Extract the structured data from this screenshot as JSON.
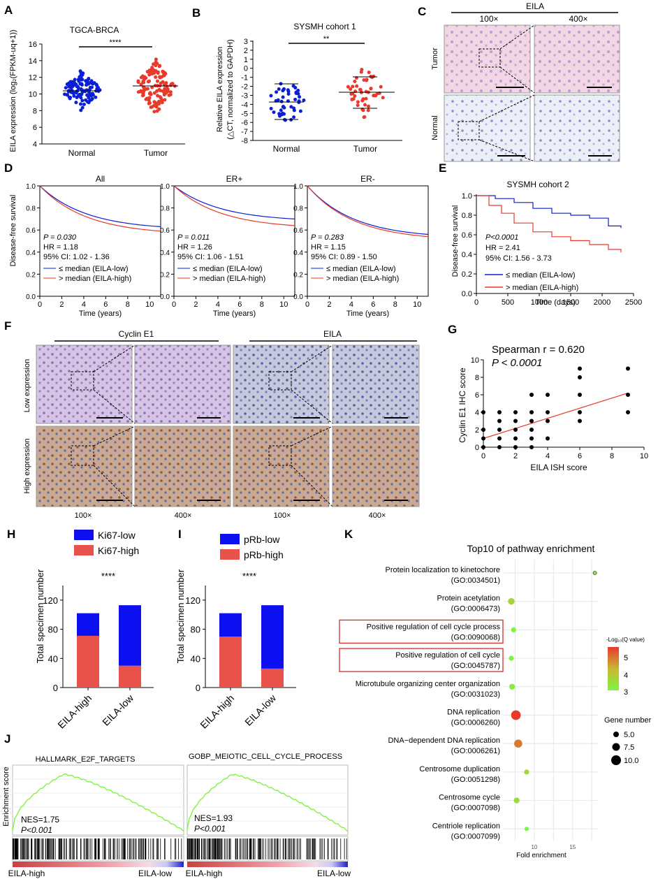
{
  "panels": {
    "A": {
      "letter": "A",
      "title": "TGCA-BRCA",
      "ylabel": "EILA expression (log₂(FPKM-uq+1))",
      "sig": "****",
      "yticks": [
        "4",
        "6",
        "8",
        "10",
        "12",
        "14",
        "16"
      ],
      "xcats": [
        "Normal",
        "Tumor"
      ]
    },
    "B": {
      "letter": "B",
      "title": "SYSMH cohort 1",
      "ylabel1": "Relative EILA expression",
      "ylabel2": "(△CT, normalized to GAPDH)",
      "sig": "**",
      "yticks": [
        "3",
        "2",
        "1",
        "0",
        "-1",
        "-2",
        "-3",
        "-4",
        "-5",
        "-6",
        "-7",
        "-8"
      ],
      "xcats": [
        "Normal",
        "Tumor"
      ]
    },
    "C": {
      "letter": "C",
      "title": "EILA",
      "mag1": "100×",
      "mag2": "400×",
      "rows": [
        "Tumor",
        "Normal"
      ]
    },
    "D": {
      "letter": "D",
      "xlabel": "Time (years)",
      "ylabel": "Disease-free survival",
      "yticks": [
        "0.0",
        "0.2",
        "0.4",
        "0.6",
        "0.8",
        "1.0"
      ],
      "xticks": [
        "0",
        "2",
        "4",
        "6",
        "8",
        "10"
      ],
      "subs": [
        {
          "title": "All",
          "p": "P = 0.030",
          "hr": "HR = 1.18",
          "ci": "95% CI: 1.02 - 1.36"
        },
        {
          "title": "ER+",
          "p": "P = 0.011",
          "hr": "HR = 1.26",
          "ci": "95% CI: 1.06 - 1.51"
        },
        {
          "title": "ER-",
          "p": "P = 0.283",
          "hr": "HR = 1.15",
          "ci": "95% CI: 0.89 - 1.50"
        }
      ],
      "legend_low": "≤ median (EILA-low)",
      "legend_high": "> median (EILA-high)"
    },
    "E": {
      "letter": "E",
      "title": "SYSMH cohort 2",
      "p": "P<0.0001",
      "hr": "HR = 2.41",
      "ci": "95% CI: 1.56 - 3.73",
      "ylabel": "Disease-free survival",
      "xlabel": "Time (days)",
      "yticks": [
        "0.0",
        "0.2",
        "0.4",
        "0.6",
        "0.8",
        "1.0"
      ],
      "xticks": [
        "0",
        "500",
        "1000",
        "1500",
        "2000",
        "2500"
      ],
      "legend_low": "≤ median (EILA-low)",
      "legend_high": "> median (EILA-high)"
    },
    "F": {
      "letter": "F",
      "col1": "Cyclin E1",
      "col2": "EILA",
      "rows": [
        "Low expression",
        "High expression"
      ],
      "mags": [
        "100×",
        "400×",
        "100×",
        "400×"
      ]
    },
    "G": {
      "letter": "G",
      "stat1": "Spearman r = 0.620",
      "stat2": "P < 0.0001",
      "ylabel": "Cyclin E1 IHC score",
      "xlabel": "EILA ISH score",
      "yticks": [
        "0",
        "2",
        "4",
        "6",
        "8",
        "10"
      ],
      "xticks": [
        "0",
        "2",
        "4",
        "6",
        "8",
        "10"
      ]
    },
    "H": {
      "letter": "H",
      "leg1": "Ki67-low",
      "leg2": "Ki67-high",
      "sig": "****",
      "ylabel": "Total specimen number",
      "yticks": [
        "0",
        "40",
        "80",
        "120"
      ],
      "xcats": [
        "EILA-high",
        "EILA-low"
      ]
    },
    "I": {
      "letter": "I",
      "leg1": "pRb-low",
      "leg2": "pRb-high",
      "sig": "****",
      "ylabel": "Total specimen number",
      "yticks": [
        "0",
        "40",
        "80",
        "120"
      ],
      "xcats": [
        "EILA-high",
        "EILA-low"
      ]
    },
    "J": {
      "letter": "J",
      "title1": "HALLMARK_E2F_TARGETS",
      "title2": "GOBP_MEIOTIC_CELL_CYCLE_PROCESS",
      "nes1": "NES=1.75",
      "p1": "P<0.001",
      "nes2": "NES=1.93",
      "p2": "P<0.001",
      "ylabel": "Enrichment score",
      "left": "EILA-high",
      "right": "EILA-low"
    },
    "K": {
      "letter": "K",
      "title": "Top10 of pathway enrichment",
      "xlabel": "Fold enrichment",
      "xticks": [
        "10",
        "15"
      ],
      "legend_q": "-Log₁₀(Q value)",
      "q_ticks": [
        "5",
        "4",
        "3"
      ],
      "legend_gene": "Gene number",
      "gene_ticks": [
        "5.0",
        "7.5",
        "10.0"
      ]
    }
  },
  "chart_data": [
    {
      "type": "scatter",
      "panel": "G",
      "xlabel": "EILA ISH score",
      "ylabel": "Cyclin E1 IHC score",
      "xlim": [
        0,
        10
      ],
      "ylim": [
        0,
        10
      ],
      "x": [
        0,
        0,
        0,
        0,
        1,
        1,
        1,
        1,
        1,
        2,
        2,
        2,
        2,
        2,
        3,
        3,
        3,
        3,
        3,
        3,
        4,
        4,
        4,
        4,
        6,
        6,
        6,
        6,
        6,
        9,
        9,
        9
      ],
      "y": [
        0,
        1,
        2,
        4,
        0,
        1,
        2,
        3,
        4,
        0,
        1,
        2,
        3,
        4,
        0,
        1,
        2,
        3,
        4,
        6,
        1,
        3,
        4,
        6,
        3,
        4,
        6,
        8,
        9,
        4,
        6,
        9
      ],
      "fit": {
        "x0": 0,
        "y0": 1,
        "x1": 9,
        "y1": 6.2
      }
    },
    {
      "type": "bar",
      "panel": "H",
      "categories": [
        "EILA-high",
        "EILA-low"
      ],
      "ylim": [
        0,
        140
      ],
      "series": [
        {
          "name": "Ki67-high",
          "values": [
            71,
            30
          ]
        },
        {
          "name": "Ki67-low",
          "values": [
            31,
            83
          ]
        }
      ]
    },
    {
      "type": "bar",
      "panel": "I",
      "categories": [
        "EILA-high",
        "EILA-low"
      ],
      "ylim": [
        0,
        140
      ],
      "series": [
        {
          "name": "pRb-high",
          "values": [
            70,
            26
          ]
        },
        {
          "name": "pRb-low",
          "values": [
            32,
            87
          ]
        }
      ]
    },
    {
      "type": "scatter",
      "panel": "K",
      "title": "Top10 of pathway enrichment",
      "xlabel": "Fold enrichment",
      "categories": [
        "Protein localization to kinetochore",
        "Protein acetylation",
        "Positive regulation of cell cycle process",
        "Positive regulation of cell cycle",
        "Microtubule organizing center organization",
        "DNA replication",
        "DNA−dependent DNA replication",
        "Centrosome duplication",
        "Centrosome cycle",
        "Centriole replication"
      ],
      "go_ids": [
        "(GO:0034501)",
        "(GO:0006473)",
        "(GO:0090068)",
        "(GO:0045787)",
        "(GO:0031023)",
        "(GO:0006260)",
        "(GO:0006261)",
        "(GO:0051298)",
        "(GO:0007098)",
        "(GO:0007099)"
      ],
      "fold": [
        17.9,
        7.0,
        7.3,
        7.0,
        7.1,
        7.6,
        7.9,
        9.0,
        7.7,
        9.0
      ],
      "qvalue": [
        3.0,
        3.6,
        2.8,
        2.8,
        3.0,
        5.6,
        4.9,
        3.4,
        3.4,
        2.8
      ],
      "genes": [
        3,
        7,
        5,
        5,
        6,
        11,
        9,
        5,
        6,
        4
      ],
      "highlighted": [
        2,
        3
      ]
    },
    {
      "type": "line",
      "panel": "E",
      "title": "SYSMH cohort 2",
      "xlabel": "Time (days)",
      "ylabel": "Disease-free survival",
      "xlim": [
        0,
        2500
      ],
      "ylim": [
        0,
        1
      ],
      "series": [
        {
          "name": "≤ median (EILA-low)",
          "x": [
            0,
            300,
            600,
            900,
            1200,
            1500,
            1800,
            2100,
            2300
          ],
          "y": [
            1.0,
            0.97,
            0.93,
            0.87,
            0.82,
            0.8,
            0.77,
            0.69,
            0.67
          ]
        },
        {
          "name": "> median (EILA-high)",
          "x": [
            0,
            200,
            400,
            600,
            900,
            1200,
            1500,
            1800,
            2100,
            2300
          ],
          "y": [
            1.0,
            0.9,
            0.82,
            0.72,
            0.63,
            0.58,
            0.54,
            0.5,
            0.45,
            0.42
          ]
        }
      ]
    }
  ],
  "colors": {
    "blue": "#0a1fd6",
    "red": "#e8392b",
    "green": "#7ef542",
    "highlight": "#d62c2c",
    "bar_red": "#e8524a",
    "bar_blue": "#0c10f0"
  }
}
